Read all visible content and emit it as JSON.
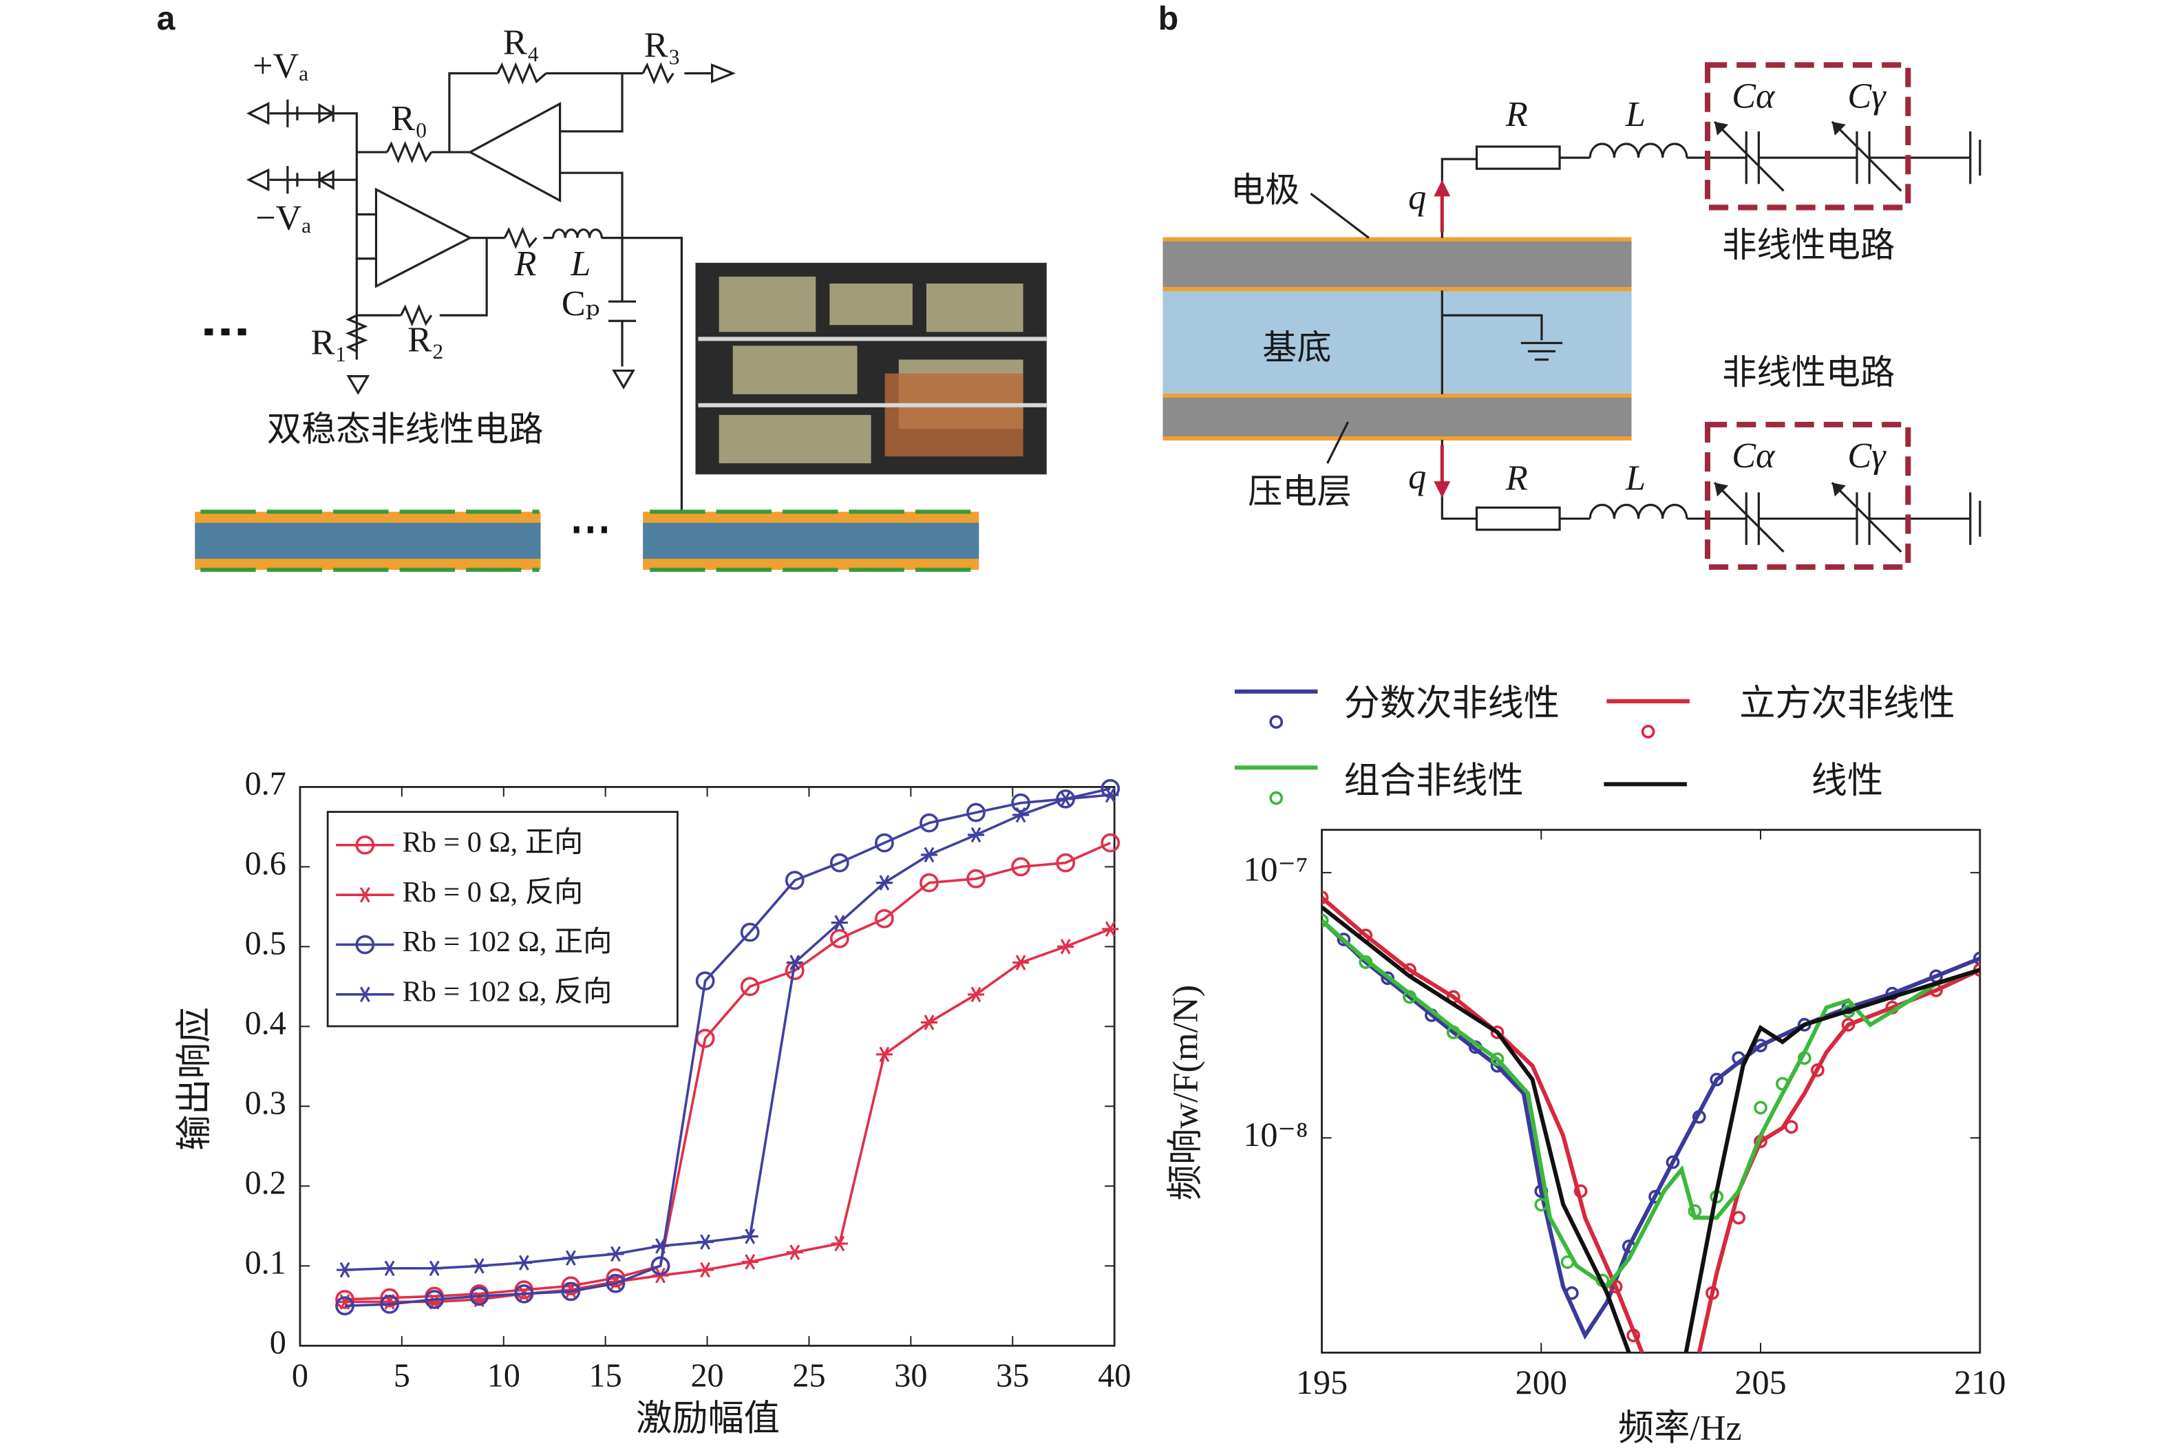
{
  "panel_a": {
    "label": "a",
    "labels": [
      "+Vₐ",
      "R₄",
      "R₃",
      "R₀",
      "−Vₐ",
      "R",
      "L",
      "Cₚ",
      "R₁",
      "R₂"
    ],
    "caption": "双稳态非线性电路"
  },
  "panel_b": {
    "label": "b",
    "labels": [
      "R",
      "L",
      "Cα",
      "Cγ",
      "电极",
      "q",
      "非线性电路",
      "基底",
      "非线性电路",
      "压电层",
      "q",
      "R",
      "L",
      "Cα",
      "Cγ"
    ]
  },
  "chart_data": [
    {
      "type": "line",
      "xlabel": "激励幅值",
      "ylabel": "输出响应",
      "x": [
        2.2,
        4.4,
        6.6,
        8.8,
        11,
        13.3,
        15.5,
        17.7,
        19.9,
        22.1,
        24.3,
        26.5,
        28.7,
        30.9,
        33.2,
        35.4,
        37.6,
        39.8
      ],
      "xlim": [
        0,
        40
      ],
      "xticks": [
        0,
        5,
        10,
        15,
        20,
        25,
        30,
        35,
        40
      ],
      "ylim": [
        0,
        0.7
      ],
      "yticks": [
        0,
        0.1,
        0.2,
        0.3,
        0.4,
        0.5,
        0.6,
        0.7
      ],
      "legend": "upper left",
      "series": [
        {
          "name": "Rb = 0 Ω, 正向",
          "color": "#e0304a",
          "marker": "circle",
          "values": [
            0.058,
            0.06,
            0.062,
            0.065,
            0.07,
            0.075,
            0.085,
            0.1,
            0.385,
            0.45,
            0.47,
            0.51,
            0.535,
            0.58,
            0.585,
            0.6,
            0.605,
            0.63
          ]
        },
        {
          "name": "Rb = 0 Ω, 反向",
          "color": "#e0304a",
          "marker": "star",
          "values": [
            0.055,
            0.055,
            0.055,
            0.058,
            0.065,
            0.07,
            0.08,
            0.088,
            0.095,
            0.105,
            0.117,
            0.128,
            0.365,
            0.405,
            0.44,
            0.48,
            0.5,
            0.522
          ]
        },
        {
          "name": "Rb = 102 Ω, 正向",
          "color": "#4040a0",
          "marker": "circle",
          "values": [
            0.05,
            0.052,
            0.058,
            0.062,
            0.065,
            0.068,
            0.078,
            0.1,
            0.457,
            0.518,
            0.583,
            0.605,
            0.63,
            0.655,
            0.668,
            0.68,
            0.685,
            0.698
          ]
        },
        {
          "name": "Rb = 102 Ω, 反向",
          "color": "#4040a0",
          "marker": "star",
          "values": [
            0.095,
            0.097,
            0.097,
            0.1,
            0.104,
            0.11,
            0.115,
            0.125,
            0.13,
            0.137,
            0.48,
            0.53,
            0.58,
            0.615,
            0.64,
            0.665,
            0.685,
            0.69
          ]
        }
      ]
    },
    {
      "type": "line",
      "xlabel": "频率/Hz",
      "ylabel": "频响w/F(m/N)",
      "xlim": [
        195,
        210
      ],
      "xticks": [
        195,
        200,
        205,
        210
      ],
      "ylim": [
        1.55e-09,
        1.45e-07
      ],
      "yscale": "log",
      "yticks": [
        {
          "value": 1e-07,
          "label": "10⁻⁷"
        },
        {
          "value": 1e-08,
          "label": "10⁻⁸"
        }
      ],
      "legend": "top",
      "series": [
        {
          "name": "分数次非线性",
          "color": "#3a3a9a",
          "marker": "circle",
          "x": [
            195,
            196,
            197,
            198,
            199,
            199.6,
            200,
            200.5,
            201,
            201.5,
            202,
            203,
            204,
            205,
            206,
            207,
            208,
            209,
            210
          ],
          "values": [
            6.6e-08,
            4.6e-08,
            3.4e-08,
            2.5e-08,
            1.87e-08,
            1.47e-08,
            6.3e-09,
            2.75e-09,
            1.8e-09,
            2.4e-09,
            3.9e-09,
            8.1e-09,
            1.66e-08,
            2.23e-08,
            2.67e-08,
            3.1e-08,
            3.5e-08,
            4.07e-08,
            4.75e-08
          ],
          "marker_x": [
            195,
            195.5,
            196,
            196.5,
            197,
            197.5,
            198,
            198.5,
            199,
            200,
            200.7,
            202,
            202.6,
            203,
            203.6,
            204,
            204.5,
            205,
            206,
            207,
            208,
            209,
            210
          ],
          "marker_values": [
            6.6e-08,
            5.6e-08,
            4.6e-08,
            4e-08,
            3.4e-08,
            2.9e-08,
            2.5e-08,
            2.2e-08,
            1.87e-08,
            6.3e-09,
            2.6e-09,
            3.9e-09,
            6e-09,
            8.1e-09,
            1.2e-08,
            1.66e-08,
            2e-08,
            2.23e-08,
            2.67e-08,
            3.1e-08,
            3.5e-08,
            4.07e-08,
            4.75e-08
          ]
        },
        {
          "name": "立方次非线性",
          "color": "#d8283e",
          "marker": "circle",
          "x": [
            195,
            196,
            197,
            198,
            199,
            199.8,
            200.5,
            201,
            201.7,
            202.3,
            null,
            203.6,
            204,
            204.5,
            205,
            205.5,
            206,
            206.5,
            207,
            208,
            209,
            210
          ],
          "values": [
            8.06e-08,
            5.8e-08,
            4.3e-08,
            3.4e-08,
            2.5e-08,
            1.87e-08,
            1.02e-08,
            5e-09,
            2.75e-09,
            1.55e-09,
            null,
            1.55e-09,
            3.09e-09,
            6.3e-09,
            9.7e-09,
            1.09e-08,
            1.47e-08,
            2.1e-08,
            2.67e-08,
            3.1e-08,
            3.6e-08,
            4.3e-08
          ],
          "marker_x": [
            195,
            196,
            197,
            198,
            199,
            200.9,
            201.7,
            202.1,
            203.9,
            204.5,
            205,
            205.7,
            206.3,
            207,
            208,
            209,
            210
          ],
          "marker_values": [
            8.06e-08,
            5.8e-08,
            4.3e-08,
            3.4e-08,
            2.5e-08,
            6.3e-09,
            2.75e-09,
            1.8e-09,
            2.6e-09,
            5e-09,
            9.7e-09,
            1.1e-08,
            1.8e-08,
            2.67e-08,
            3.1e-08,
            3.6e-08,
            4.3e-08
          ]
        },
        {
          "name": "组合非线性",
          "color": "#3cb83c",
          "marker": "circle",
          "x": [
            195,
            196,
            197,
            198,
            199,
            199.7,
            200.2,
            200.8,
            201.5,
            202,
            202.8,
            203.2,
            203.5,
            204,
            204.5,
            205,
            205.5,
            206,
            206.5,
            207,
            207.5,
            208,
            209,
            210
          ],
          "values": [
            6.6e-08,
            4.7e-08,
            3.5e-08,
            2.6e-08,
            1.98e-08,
            1.47e-08,
            5e-09,
            3.3e-09,
            2.75e-09,
            3.5e-09,
            6.3e-09,
            7.6e-09,
            5e-09,
            5e-09,
            6.3e-09,
            1.02e-08,
            1.47e-08,
            2.1e-08,
            3.1e-08,
            3.3e-08,
            2.67e-08,
            3e-08,
            3.8e-08,
            4.3e-08
          ],
          "marker_x": [
            195,
            196,
            197,
            198,
            199,
            200,
            200.6,
            201.4,
            203.5,
            204,
            205,
            205.5,
            206,
            207
          ],
          "marker_values": [
            6.6e-08,
            4.6e-08,
            3.4e-08,
            2.5e-08,
            1.98e-08,
            5.6e-09,
            3.4e-09,
            2.9e-09,
            5.3e-09,
            6e-09,
            1.3e-08,
            1.6e-08,
            2e-08,
            3e-08
          ]
        },
        {
          "name": "线性",
          "color": "#111111",
          "x": [
            195,
            197,
            199,
            199.8,
            200.5,
            201.5,
            202,
            null,
            203.3,
            204,
            204.6,
            205,
            205.5,
            206,
            208,
            210
          ],
          "values": [
            7.41e-08,
            4.07e-08,
            2.5e-08,
            1.66e-08,
            5.62e-09,
            2.6e-09,
            1.55e-09,
            null,
            1.55e-09,
            6.3e-09,
            1.87e-08,
            2.6e-08,
            2.3e-08,
            2.67e-08,
            3.4e-08,
            4.3e-08
          ]
        }
      ]
    }
  ]
}
